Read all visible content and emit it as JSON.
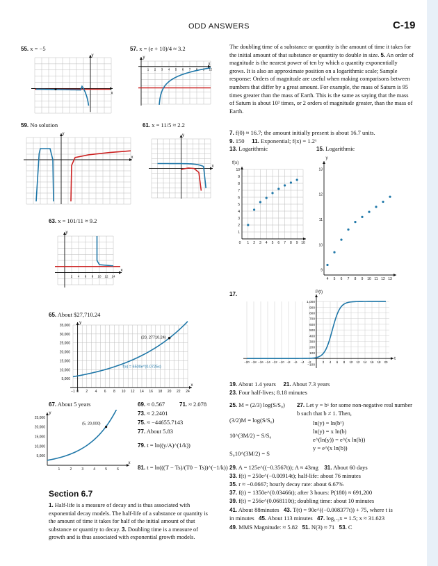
{
  "header": {
    "title": "ODD ANSWERS",
    "page": "C-19"
  },
  "ans": {
    "a55": "55.",
    "a55t": "x = −5",
    "a57": "57.",
    "a57t": "x = (e + 10)/4 ≈ 3.2",
    "a59": "59.",
    "a59t": "No solution",
    "a61": "61.",
    "a61t": "x = 11/5 ≈ 2.2",
    "a63": "63.",
    "a63t": "x = 101/11 ≈ 9.2",
    "a65": "65.",
    "a65t": "About $27,710.24",
    "a67": "67.",
    "a67t": "About 5 years",
    "a69": "69.",
    "a69t": "≈ 0.567",
    "a71": "71.",
    "a71t": "≈ 2.078",
    "a73": "73.",
    "a73t": "≈ 2.2401",
    "a75": "75.",
    "a75t": "≈ −44655.7143",
    "a77": "77.",
    "a77t": "About 5.83",
    "a79": "79.",
    "a79t": "t = ln((y/A)^(1/k))",
    "a81": "81.",
    "a81t": "t = ln(((T − Ts)/(T0 − Ts))^(−1/k))"
  },
  "section": "Section 6.7",
  "sec_para_left": [
    {
      "num": "1.",
      "text": "Half-life is a measure of decay and is thus associated with exponential decay models. The half-life of a substance or quantity is the amount of time it takes for half of the initial amount of that substance or quantity to decay."
    },
    {
      "num": "3.",
      "text": "Doubling time is a measure of growth and is thus associated with exponential growth models."
    }
  ],
  "right_top": [
    {
      "num": "",
      "text": "The doubling time of a substance or quantity is the amount of time it takes for the initial amount of that substance or quantity to double in size."
    },
    {
      "num": "5.",
      "text": "An order of magnitude is the nearest power of ten by which a quantity exponentially grows. It is also an approximate position on a logarithmic scale; Sample response: Orders of magnitude are useful when making comparisons between numbers that differ by a great amount. For example, the mass of Saturn is 95 times greater than the mass of Earth. This is the same as saying that the mass of Saturn is about 10² times, or 2 orders of magnitude greater, than the mass of Earth."
    }
  ],
  "r7": "7.",
  "r7t": "f(0) ≈ 16.7; the amount initially present is about 16.7 units.",
  "r9": "9.",
  "r9t": "150",
  "r11": "11.",
  "r11t": "Exponential; f(x) = 1.2ˣ",
  "r13": "13.",
  "r13t": "Logarithmic",
  "r15": "15.",
  "r15t": "Logarithmic",
  "r17": "17.",
  "r19": "19.",
  "r19t": "About 1.4 years",
  "r21": "21.",
  "r21t": "About 7.3 years",
  "r23": "23.",
  "r23t": "Four half-lives; 8.18 minutes",
  "r25": "25.",
  "r25t": "M = (2/3) log(S/S₀)",
  "r25s1": "(3/2)M = log(S/S₀)",
  "r25s2": "10^(3M/2) = S/S₀",
  "r25s3": "S₀10^(3M/2) = S",
  "r27": "27.",
  "r27t": "Let y = bˣ for some non-negative real number b such that b ≠ 1. Then,",
  "r27s": [
    "ln(y) = ln(bˣ)",
    "ln(y) = x ln(b)",
    "e^(ln(y)) = e^(x ln(b))",
    "y = e^(x ln(b))"
  ],
  "r29": "29.",
  "r29t": "A = 125e^((−0.3567t)); A ≈ 43mg",
  "r31": "31.",
  "r31t": "About 60 days",
  "r33": "33.",
  "r33t": "f(t) = 250e^(−0.00914t); half-life: about 76 minutes",
  "r35": "35.",
  "r35t": "r ≈ −0.0667; hourly decay rate: about 6.67%",
  "r37": "37.",
  "r37t": "f(t) = 1350e^(0.03466t); after 3 hours: P(180) ≈ 691,200",
  "r39": "39.",
  "r39t": "f(t) = 256e^(0.068110t); doubling time: about 10 minutes",
  "r41": "41.",
  "r41t": "About 88minutes",
  "r43": "43.",
  "r43t": "T(t) = 90e^((−0.008377t)) + 75, where t is",
  "r43b": "in minutes",
  "r45": "45.",
  "r45t": "About 113 minutes",
  "r47": "47.",
  "r47t": "log₁.₅x = 1.5; x ≈ 31.623",
  "r49": "49.",
  "r49t": "MMS Magnitude: ≈ 5.82",
  "r51": "51.",
  "r51t": "N(3) ≈ 71",
  "r53": "53.",
  "r53t": "C",
  "chart_data": [
    {
      "id": "g55",
      "type": "line",
      "series": [
        {
          "kind": "curve",
          "color": "#1f77a8"
        },
        {
          "kind": "hline",
          "y": 0,
          "color": "#cc2222"
        }
      ],
      "xlim": [
        -8,
        1
      ],
      "ylim": [
        -4,
        5
      ],
      "xlabel": "x",
      "ylabel": "y"
    },
    {
      "id": "g57",
      "type": "line",
      "series": [
        {
          "kind": "curve",
          "color": "#1f77a8"
        },
        {
          "kind": "hline",
          "y": -4,
          "color": "#cc2222"
        }
      ],
      "xlim": [
        0,
        10
      ],
      "ylim": [
        -7,
        1
      ],
      "xlabel": "x",
      "ylabel": "y"
    },
    {
      "id": "g59",
      "type": "line",
      "series": [
        {
          "kind": "curve",
          "color": "#1f77a8"
        },
        {
          "kind": "curve",
          "color": "#cc2222"
        }
      ],
      "xlim": [
        -5,
        10
      ],
      "ylim": [
        -8,
        4
      ],
      "xlabel": "x",
      "ylabel": "y"
    },
    {
      "id": "g61",
      "type": "line",
      "series": [
        {
          "kind": "curve",
          "color": "#1f77a8"
        },
        {
          "kind": "curve",
          "color": "#cc2222"
        }
      ],
      "xlim": [
        -5,
        5
      ],
      "ylim": [
        -6,
        6
      ],
      "xlabel": "x",
      "ylabel": "y"
    },
    {
      "id": "g63",
      "type": "line",
      "series": [
        {
          "kind": "curve",
          "color": "#1f77a8"
        },
        {
          "kind": "hline",
          "y": 1,
          "color": "#cc2222"
        }
      ],
      "xlim": [
        -2,
        14
      ],
      "ylim": [
        -2,
        6
      ],
      "xlabel": "x",
      "ylabel": "y",
      "xticks": [
        "2",
        "4",
        "6",
        "8",
        "10",
        "12",
        "14"
      ]
    },
    {
      "id": "g65",
      "type": "line",
      "x": [
        -1,
        24
      ],
      "yticks": [
        "5,000",
        "10,000",
        "15,000",
        "20,000",
        "25,000",
        "30,000",
        "35,000"
      ],
      "xticks": [
        "−1",
        "0",
        "2",
        "4",
        "6",
        "8",
        "10",
        "12",
        "14",
        "16",
        "18",
        "20",
        "22",
        "24"
      ],
      "ylim": [
        -1000,
        35000
      ],
      "point": {
        "x": 20,
        "y": 27710.24,
        "label": "(20, 27710.24)"
      },
      "formula": "f(x) = 6500e^(0.0725x)",
      "xlabel": "x",
      "ylabel": "y"
    },
    {
      "id": "g67",
      "type": "line",
      "xticks": [
        "1",
        "2",
        "3",
        "4",
        "5",
        "6"
      ],
      "yticks": [
        "5,000",
        "10,000",
        "15,000",
        "20,000",
        "25,000"
      ],
      "ylim": [
        0,
        26000
      ],
      "xlim": [
        0,
        6.5
      ],
      "point": {
        "x": 5,
        "y": 20000,
        "label": "(5, 20,000)"
      },
      "xlabel": "x",
      "ylabel": "y"
    },
    {
      "id": "g13",
      "type": "scatter",
      "ylabel": "f(x)",
      "xticks": [
        "1",
        "2",
        "3",
        "4",
        "5",
        "6",
        "7",
        "8",
        "9",
        "10"
      ],
      "yticks": [
        "1",
        "2",
        "3",
        "4",
        "5",
        "6",
        "7",
        "8",
        "9",
        "10"
      ],
      "x": [
        1,
        2,
        3,
        4,
        5,
        6,
        7,
        8,
        9
      ],
      "y": [
        2,
        4.2,
        5.3,
        5.9,
        6.6,
        7.2,
        7.7,
        8.1,
        8.5
      ],
      "xlim": [
        0,
        10
      ],
      "ylim": [
        0,
        10
      ]
    },
    {
      "id": "g15",
      "type": "scatter",
      "ylabel": "y",
      "xticks": [
        "4",
        "5",
        "6",
        "7",
        "8",
        "9",
        "10",
        "11",
        "12",
        "13"
      ],
      "yticks": [
        "9",
        "10",
        "11",
        "12",
        "13"
      ],
      "x": [
        4,
        5,
        6,
        7,
        8,
        9,
        10,
        11,
        12,
        13
      ],
      "y": [
        9.2,
        9.7,
        10.2,
        10.6,
        10.9,
        11.1,
        11.3,
        11.5,
        11.7,
        11.9
      ],
      "xlim": [
        3.5,
        13.5
      ],
      "ylim": [
        8.8,
        13.2
      ]
    },
    {
      "id": "g17",
      "type": "line",
      "ylabel": "P(t)",
      "xlabel": "t",
      "yticks": [
        "100",
        "200",
        "300",
        "400",
        "500",
        "600",
        "700",
        "800",
        "900",
        "1,000"
      ],
      "xticks": [
        "−20",
        "−18",
        "−16",
        "−14",
        "−12",
        "−10",
        "−8",
        "−6",
        "−4",
        "−2",
        "2",
        "4",
        "6",
        "8",
        "10",
        "12",
        "14",
        "16",
        "18",
        "20"
      ],
      "xlim": [
        -21,
        21
      ],
      "ylim": [
        -120,
        1050
      ],
      "y_low": "−100"
    }
  ]
}
